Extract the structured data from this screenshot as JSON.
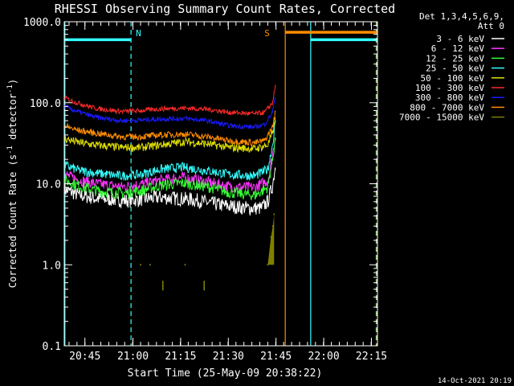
{
  "chart_data": {
    "type": "line",
    "title": "RHESSI Observing Summary Count Rates, Corrected",
    "xlabel": "Start Time (25-May-09 20:38:22)",
    "ylabel_main": "Corrected Count Rate (s",
    "ylabel_sup1": "-1",
    "ylabel_mid": " detector",
    "ylabel_sup2": "-1",
    "ylabel_end": ")",
    "x_axis_unit": "minutes after 20:38:22",
    "xlim": [
      0,
      98.5
    ],
    "ylim": [
      0.1,
      1000
    ],
    "y_scale": "log",
    "x_ticks": [
      {
        "t": 6.5,
        "label": "20:45"
      },
      {
        "t": 21.6,
        "label": "21:00"
      },
      {
        "t": 36.6,
        "label": "21:15"
      },
      {
        "t": 51.6,
        "label": "21:30"
      },
      {
        "t": 66.6,
        "label": "21:45"
      },
      {
        "t": 81.6,
        "label": "22:00"
      },
      {
        "t": 96.6,
        "label": "22:15"
      }
    ],
    "y_ticks": [
      {
        "v": 1000,
        "label": "1000.0"
      },
      {
        "v": 100,
        "label": "100.0"
      },
      {
        "v": 10,
        "label": "10.0"
      },
      {
        "v": 1,
        "label": "1.0"
      },
      {
        "v": 0.1,
        "label": "0.1"
      }
    ],
    "legend_header": [
      "Det 1,3,4,5,6,9,",
      "Att 0"
    ],
    "legend_position": "right",
    "series": [
      {
        "name": "3 - 6 keV",
        "color": "#ffffff",
        "noise": 0.09,
        "points": [
          [
            0,
            8.5
          ],
          [
            5,
            7.2
          ],
          [
            10,
            6.6
          ],
          [
            20,
            6.2
          ],
          [
            30,
            6.8
          ],
          [
            40,
            6.4
          ],
          [
            50,
            5.4
          ],
          [
            58,
            5.0
          ],
          [
            62,
            5.0
          ],
          [
            64,
            6.0
          ],
          [
            65.5,
            9.5
          ],
          [
            66.2,
            15.0
          ],
          [
            66.5,
            17.0
          ]
        ]
      },
      {
        "name": "6 - 12 keV",
        "color": "#ff33ff",
        "noise": 0.07,
        "points": [
          [
            0,
            13
          ],
          [
            5,
            11
          ],
          [
            10,
            10
          ],
          [
            18,
            9.2
          ],
          [
            24,
            9.8
          ],
          [
            30,
            11
          ],
          [
            37,
            12
          ],
          [
            45,
            10.5
          ],
          [
            52,
            9.2
          ],
          [
            60,
            9.0
          ],
          [
            64,
            11
          ],
          [
            65.5,
            22
          ],
          [
            66.2,
            35
          ],
          [
            66.5,
            40
          ]
        ]
      },
      {
        "name": "12 - 25 keV",
        "color": "#33ff33",
        "noise": 0.07,
        "points": [
          [
            0,
            11
          ],
          [
            5,
            9.3
          ],
          [
            10,
            8.2
          ],
          [
            18,
            7.6
          ],
          [
            24,
            8.2
          ],
          [
            30,
            9.5
          ],
          [
            37,
            10.2
          ],
          [
            45,
            9.2
          ],
          [
            52,
            7.8
          ],
          [
            60,
            7.2
          ],
          [
            64,
            9
          ],
          [
            65.5,
            20
          ],
          [
            66.2,
            33
          ],
          [
            66.5,
            38
          ]
        ]
      },
      {
        "name": "25 - 50 keV",
        "color": "#33ffff",
        "noise": 0.06,
        "points": [
          [
            0,
            17
          ],
          [
            5,
            14.5
          ],
          [
            10,
            13.5
          ],
          [
            18,
            12.5
          ],
          [
            24,
            13
          ],
          [
            30,
            15
          ],
          [
            37,
            16
          ],
          [
            45,
            14.5
          ],
          [
            52,
            13
          ],
          [
            60,
            12.5
          ],
          [
            64,
            15
          ],
          [
            65.5,
            30
          ],
          [
            66.2,
            50
          ],
          [
            66.5,
            56
          ]
        ]
      },
      {
        "name": "50 - 100 keV",
        "color": "#e0e000",
        "noise": 0.05,
        "points": [
          [
            0,
            36
          ],
          [
            5,
            32
          ],
          [
            10,
            30
          ],
          [
            18,
            28
          ],
          [
            24,
            28
          ],
          [
            30,
            30
          ],
          [
            38,
            33
          ],
          [
            45,
            31
          ],
          [
            52,
            28
          ],
          [
            60,
            27
          ],
          [
            64,
            30
          ],
          [
            65.5,
            42
          ],
          [
            66.2,
            58
          ],
          [
            66.5,
            62
          ]
        ]
      },
      {
        "name": "100 - 300 keV",
        "color": "#ff2a2a",
        "noise": 0.03,
        "points": [
          [
            0,
            115
          ],
          [
            4,
            100
          ],
          [
            10,
            85
          ],
          [
            18,
            78
          ],
          [
            24,
            80
          ],
          [
            30,
            84
          ],
          [
            38,
            86
          ],
          [
            45,
            83
          ],
          [
            52,
            76
          ],
          [
            60,
            73
          ],
          [
            63,
            76
          ],
          [
            65.5,
            100
          ],
          [
            66.2,
            145
          ],
          [
            66.5,
            165
          ]
        ]
      },
      {
        "name": "300 - 800 keV",
        "color": "#1a1aff",
        "noise": 0.03,
        "points": [
          [
            0,
            90
          ],
          [
            4,
            78
          ],
          [
            10,
            66
          ],
          [
            18,
            60
          ],
          [
            24,
            61
          ],
          [
            30,
            63
          ],
          [
            38,
            64
          ],
          [
            45,
            60
          ],
          [
            52,
            52
          ],
          [
            60,
            50
          ],
          [
            63,
            54
          ],
          [
            65.5,
            76
          ],
          [
            66.2,
            110
          ],
          [
            66.5,
            125
          ]
        ]
      },
      {
        "name": "800 - 7000 keV",
        "color": "#ff8c00",
        "noise": 0.04,
        "points": [
          [
            0,
            52
          ],
          [
            4,
            46
          ],
          [
            10,
            42
          ],
          [
            18,
            38
          ],
          [
            24,
            38
          ],
          [
            30,
            40
          ],
          [
            38,
            41
          ],
          [
            45,
            38
          ],
          [
            52,
            34
          ],
          [
            60,
            32
          ],
          [
            63,
            34
          ],
          [
            65.5,
            50
          ],
          [
            66.2,
            70
          ],
          [
            66.5,
            78
          ]
        ]
      },
      {
        "name": "7000 - 15000 keV",
        "color": "#808000",
        "noise": 0,
        "points": [
          [
            24,
            1.0
          ],
          [
            27,
            1.0
          ],
          [
            31,
            0.62
          ],
          [
            38,
            1.0
          ],
          [
            44,
            0.62
          ],
          [
            64,
            1.0
          ],
          [
            65,
            2.2
          ],
          [
            65.6,
            3.0
          ],
          [
            66,
            4.2
          ]
        ]
      }
    ],
    "annotations": [
      {
        "label": "N",
        "color": "#33ffff",
        "x": 21
      },
      {
        "label": "S",
        "color": "#ff8c00",
        "x": 66.5
      }
    ],
    "bars": [
      {
        "name": "N",
        "color": "#33ffff",
        "x0": 0.2,
        "x1": 21,
        "y": 600
      },
      {
        "name": "S",
        "color": "#ff8c00",
        "x0": 69.5,
        "x1": 98.3,
        "y": 740
      },
      {
        "name": "cyan",
        "color": "#33ffff",
        "x0": 77.5,
        "x1": 98.3,
        "y": 600
      }
    ],
    "vlines": [
      {
        "x": 0.2,
        "color": "#33ffff",
        "style": "solid"
      },
      {
        "x": 21,
        "color": "#33ffff",
        "style": "dash"
      },
      {
        "x": 69.5,
        "color": "#ff8c00",
        "style": "solid"
      },
      {
        "x": 77.5,
        "color": "#33ffff",
        "style": "solid"
      },
      {
        "x": 98.1,
        "color": "#ff8c00",
        "style": "dash"
      },
      {
        "x": 98.3,
        "color": "#33ffff",
        "style": "dash"
      }
    ]
  },
  "footer_timestamp": "14-Oct-2021 20:19"
}
